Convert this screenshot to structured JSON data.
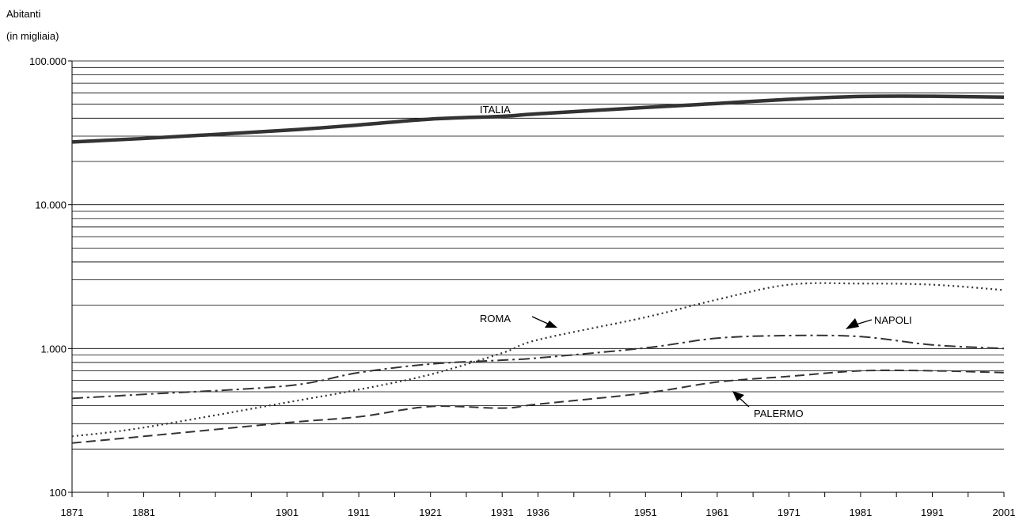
{
  "chart_data": {
    "type": "line",
    "ylabel_lines": [
      "Abitanti",
      "(in migliaia)"
    ],
    "yscale": "log",
    "ylim": [
      100,
      100000
    ],
    "ytick_values": [
      100,
      1000,
      10000,
      100000
    ],
    "ytick_labels": [
      "100",
      "1.000",
      "10.000",
      "100.000"
    ],
    "xlim": [
      1871,
      2001
    ],
    "xtick_values": [
      1871,
      1881,
      1901,
      1911,
      1921,
      1931,
      1936,
      1951,
      1961,
      1971,
      1981,
      1991,
      2001
    ],
    "xtick_labels": [
      "1871",
      "1881",
      "1901",
      "1911",
      "1921",
      "1931",
      "1936",
      "1951",
      "1961",
      "1971",
      "1981",
      "1991",
      "2001"
    ],
    "minor_xticks": [
      1876,
      1886,
      1891,
      1896,
      1906,
      1916,
      1926,
      1941,
      1946,
      1956,
      1966,
      1976,
      1986,
      1996
    ],
    "grid": "horizontal",
    "x": [
      1871,
      1881,
      1901,
      1911,
      1921,
      1931,
      1936,
      1951,
      1961,
      1971,
      1981,
      1991,
      2001
    ],
    "series": [
      {
        "name": "ITALIA",
        "style": "solid",
        "values": [
          27300,
          28900,
          33000,
          35900,
          39400,
          41200,
          42900,
          47500,
          50600,
          54100,
          56600,
          56800,
          56000
        ]
      },
      {
        "name": "ROMA",
        "style": "dotted",
        "values": [
          245,
          282,
          422,
          518,
          660,
          930,
          1150,
          1650,
          2190,
          2780,
          2830,
          2780,
          2550
        ]
      },
      {
        "name": "NAPOLI",
        "style": "dashdot",
        "values": [
          450,
          480,
          550,
          680,
          780,
          830,
          860,
          1010,
          1180,
          1230,
          1210,
          1060,
          1000
        ]
      },
      {
        "name": "PALERMO",
        "style": "dashed",
        "values": [
          220,
          245,
          305,
          335,
          395,
          385,
          410,
          490,
          585,
          640,
          700,
          700,
          680
        ]
      }
    ],
    "annotations": [
      {
        "text": "ITALIA"
      },
      {
        "text": "ROMA"
      },
      {
        "text": "NAPOLI"
      },
      {
        "text": "PALERMO"
      }
    ],
    "colors": {
      "line": "#333333",
      "grid": "#000000",
      "axis": "#000000"
    }
  }
}
